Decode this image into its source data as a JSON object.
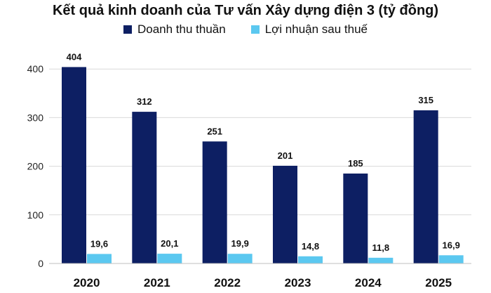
{
  "chart_data": {
    "type": "bar",
    "title": "Kết quả kinh doanh của Tư vấn Xây dựng điện 3 (tỷ đồng)",
    "categories": [
      "2020",
      "2021",
      "2022",
      "2023",
      "2024",
      "2025"
    ],
    "series": [
      {
        "name": "Doanh thu thuần",
        "color": "#0D1F63",
        "values": [
          404,
          312,
          251,
          201,
          185,
          315
        ],
        "labels": [
          "404",
          "312",
          "251",
          "201",
          "185",
          "315"
        ]
      },
      {
        "name": "Lợi nhuận sau thuế",
        "color": "#5BC8F0",
        "values": [
          19.6,
          20.1,
          19.9,
          14.8,
          11.8,
          16.9
        ],
        "labels": [
          "19,6",
          "20,1",
          "19,9",
          "14,8",
          "11,8",
          "16,9"
        ]
      }
    ],
    "ylim": [
      0,
      450
    ],
    "yticks": [
      0,
      100,
      200,
      300,
      400
    ],
    "xlabel": "",
    "ylabel": "",
    "grid": true,
    "legend_position": "top"
  }
}
